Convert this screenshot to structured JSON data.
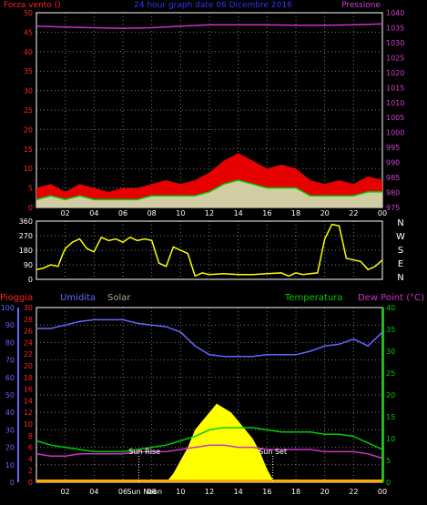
{
  "chart_data": [
    {
      "type": "line",
      "title": "24 hour graph date  06 Dicembre 2016",
      "left_label": "Forza vento ()",
      "right_label": "Pressione",
      "x_ticks": [
        "02",
        "04",
        "06",
        "08",
        "10",
        "12",
        "14",
        "16",
        "18",
        "20",
        "22",
        "00"
      ],
      "left_ticks": [
        "0",
        "5",
        "10",
        "15",
        "20",
        "25",
        "30",
        "35",
        "40",
        "45",
        "50"
      ],
      "right_ticks": [
        "975",
        "980",
        "985",
        "990",
        "995",
        "1000",
        "1005",
        "1010",
        "1015",
        "1020",
        "1025",
        "1030",
        "1035",
        "1040"
      ],
      "ylim_left": [
        0,
        50
      ],
      "ylim_right": [
        975,
        1040
      ],
      "grid": true,
      "colors": {
        "wind_gust": "#ff0000",
        "wind_avg": "#00cc00",
        "wind_min": "#ccffcc",
        "pressure": "#cc33cc",
        "left_axis": "#ff2222",
        "right_axis": "#cc44cc",
        "title": "#3333ff"
      },
      "series": [
        {
          "key": "pressure",
          "x": [
            0,
            2,
            4,
            6,
            8,
            10,
            12,
            14,
            16,
            18,
            20,
            22,
            24
          ],
          "values": [
            1035.5,
            1035.2,
            1035.0,
            1034.8,
            1035.0,
            1035.5,
            1036.0,
            1036.0,
            1036.0,
            1035.8,
            1035.8,
            1036.0,
            1036.3
          ]
        },
        {
          "key": "wind_gust",
          "x": [
            0,
            1,
            2,
            3,
            4,
            5,
            6,
            7,
            8,
            9,
            10,
            11,
            12,
            13,
            14,
            15,
            16,
            17,
            18,
            19,
            20,
            21,
            22,
            23,
            24
          ],
          "values": [
            5,
            6,
            4,
            6,
            5,
            4,
            5,
            5,
            6,
            7,
            6,
            7,
            9,
            12,
            14,
            12,
            10,
            11,
            10,
            7,
            6,
            7,
            6,
            8,
            7
          ]
        },
        {
          "key": "wind_avg",
          "x": [
            0,
            1,
            2,
            3,
            4,
            5,
            6,
            7,
            8,
            9,
            10,
            11,
            12,
            13,
            14,
            15,
            16,
            17,
            18,
            19,
            20,
            21,
            22,
            23,
            24
          ],
          "values": [
            2,
            3,
            2,
            3,
            2,
            2,
            2,
            2,
            3,
            3,
            3,
            3,
            4,
            6,
            7,
            6,
            5,
            5,
            5,
            3,
            3,
            3,
            3,
            4,
            4
          ]
        }
      ]
    },
    {
      "type": "line",
      "title": "",
      "right_label_stack": [
        "N",
        "W",
        "S",
        "E",
        "N"
      ],
      "x_ticks": [
        "02",
        "04",
        "06",
        "08",
        "10",
        "12",
        "14",
        "16",
        "18",
        "20",
        "22",
        "00"
      ],
      "y_ticks": [
        "0",
        "90",
        "180",
        "270",
        "360"
      ],
      "ylim": [
        0,
        360
      ],
      "grid": true,
      "colors": {
        "direction": "#ffff00"
      },
      "series": [
        {
          "key": "wind_direction",
          "x": [
            0,
            0.5,
            1,
            1.5,
            1.8,
            2,
            2.5,
            3,
            3.5,
            4,
            4.5,
            5,
            5.5,
            6,
            6.5,
            7,
            7.5,
            8,
            8.5,
            9,
            9.5,
            10,
            10.5,
            11,
            11.5,
            12,
            13,
            14,
            15,
            16,
            17,
            17.5,
            18,
            18.5,
            19,
            19.5,
            20,
            20.5,
            21,
            21.5,
            22,
            22.5,
            23,
            23.5,
            24
          ],
          "values": [
            60,
            70,
            90,
            80,
            150,
            190,
            230,
            250,
            190,
            170,
            260,
            240,
            250,
            230,
            260,
            240,
            250,
            240,
            100,
            80,
            200,
            180,
            160,
            20,
            40,
            30,
            35,
            30,
            30,
            35,
            40,
            20,
            40,
            30,
            35,
            40,
            250,
            340,
            330,
            130,
            120,
            110,
            60,
            80,
            120
          ]
        }
      ]
    },
    {
      "type": "line",
      "title": "",
      "legend": [
        "Pioggia",
        "Umidita",
        "Solar",
        "Temperatura",
        "Dew Point (°C)"
      ],
      "x_ticks": [
        "02",
        "04",
        "06",
        "08",
        "10",
        "12",
        "14",
        "16",
        "18",
        "20",
        "22",
        "00"
      ],
      "humidity_ticks": [
        "0",
        "10",
        "20",
        "30",
        "40",
        "50",
        "60",
        "70",
        "80",
        "90",
        "100"
      ],
      "rain_ticks": [
        "0",
        "2",
        "4",
        "6",
        "8",
        "10",
        "12",
        "14",
        "16",
        "18",
        "20",
        "22",
        "24",
        "26",
        "28",
        "30"
      ],
      "temp_ticks": [
        "0",
        "5",
        "10",
        "15",
        "20",
        "25",
        "30",
        "35",
        "40"
      ],
      "ylim_humidity": [
        0,
        100
      ],
      "ylim_temp": [
        0,
        40
      ],
      "annotations": [
        "Sun Rise",
        "Sun Set",
        "Sun Noon"
      ],
      "grid": true,
      "colors": {
        "rain": "#ff2222",
        "humidity": "#6666ff",
        "solar": "#ffff00",
        "temperature": "#00cc00",
        "dewpoint": "#cc33cc",
        "solar_label": "#aaaa88"
      },
      "series": [
        {
          "key": "humidity",
          "x": [
            0,
            1,
            2,
            3,
            4,
            5,
            6,
            7,
            8,
            9,
            10,
            11,
            12,
            13,
            14,
            15,
            16,
            17,
            18,
            19,
            20,
            21,
            22,
            23,
            24
          ],
          "values": [
            88,
            88,
            90,
            92,
            93,
            93,
            93,
            91,
            90,
            89,
            86,
            78,
            73,
            72,
            72,
            72,
            73,
            73,
            73,
            75,
            78,
            79,
            82,
            78,
            86
          ]
        },
        {
          "key": "temperature",
          "x": [
            0,
            1,
            2,
            3,
            4,
            5,
            6,
            7,
            8,
            9,
            10,
            11,
            12,
            13,
            14,
            15,
            16,
            17,
            18,
            19,
            20,
            21,
            22,
            23,
            24
          ],
          "values": [
            9.5,
            8.5,
            8,
            7.5,
            7,
            7,
            7,
            7.5,
            8,
            8.5,
            9.5,
            10.5,
            12,
            12.5,
            12.5,
            12.5,
            12,
            11.5,
            11.5,
            11.5,
            11,
            11,
            10.5,
            9,
            7.5
          ]
        },
        {
          "key": "dewpoint",
          "x": [
            0,
            1,
            2,
            3,
            4,
            5,
            6,
            7,
            8,
            9,
            10,
            11,
            12,
            13,
            14,
            15,
            16,
            17,
            18,
            19,
            20,
            21,
            22,
            23,
            24
          ],
          "values": [
            6.5,
            6,
            6,
            6.5,
            6.5,
            6.5,
            6.5,
            7,
            7,
            7,
            7.5,
            8,
            8.5,
            8.5,
            8,
            8,
            7.5,
            7.5,
            7.5,
            7.5,
            7,
            7,
            7,
            6.5,
            5.5
          ]
        },
        {
          "key": "solar",
          "x": [
            9,
            9.5,
            10,
            10.5,
            11,
            11.5,
            12,
            12.5,
            13,
            13.5,
            14,
            14.5,
            15,
            15.5,
            16,
            16.5
          ],
          "values": [
            0,
            2,
            5,
            8,
            12,
            14,
            16,
            18,
            17,
            16,
            14,
            12,
            10,
            7,
            3,
            0
          ]
        }
      ]
    }
  ]
}
